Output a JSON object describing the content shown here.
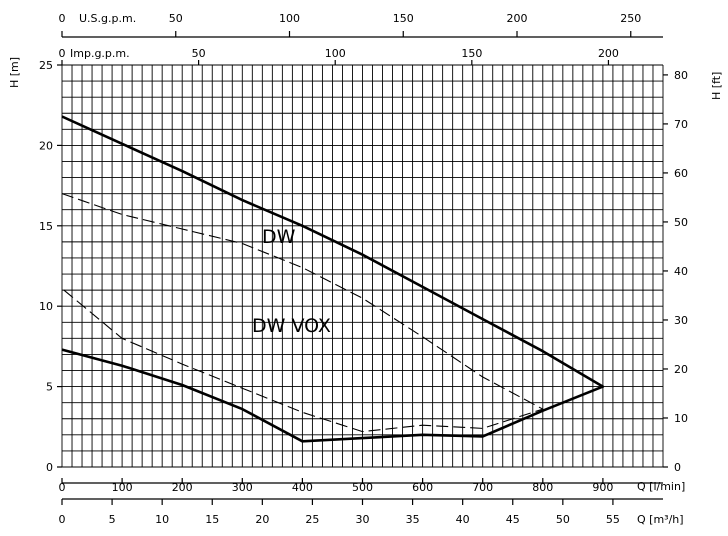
{
  "chart_data": {
    "type": "line",
    "x_axis": {
      "label": "Q [l/min]",
      "range": [
        0,
        1000
      ],
      "ticks": [
        0,
        100,
        200,
        300,
        400,
        500,
        600,
        700,
        800,
        900
      ]
    },
    "x_axis_m3h": {
      "label": "Q [m³/h]",
      "ticks": [
        0,
        5,
        10,
        15,
        20,
        25,
        30,
        35,
        40,
        45,
        50,
        55
      ]
    },
    "x_axis_usgpm": {
      "label": "U.S.g.p.m.",
      "ticks": [
        0,
        50,
        100,
        150,
        200,
        250
      ]
    },
    "x_axis_impgpm": {
      "label": "Imp.g.p.m.",
      "ticks": [
        0,
        50,
        100,
        150,
        200
      ]
    },
    "y_axis": {
      "label": "H [m]",
      "range": [
        0,
        25
      ],
      "ticks": [
        0,
        5,
        10,
        15,
        20,
        25
      ]
    },
    "y_axis_ft": {
      "label": "H [ft]",
      "ticks": [
        0,
        10,
        20,
        30,
        40,
        50,
        60,
        70,
        80
      ]
    },
    "grid": true,
    "series": [
      {
        "name": "DW",
        "style": "solid",
        "x": [
          0,
          100,
          200,
          300,
          400,
          500,
          600,
          700,
          800,
          900,
          800,
          700,
          600,
          500,
          400,
          300,
          200,
          100,
          0
        ],
        "y": [
          21.8,
          20.1,
          18.4,
          16.6,
          15.0,
          13.2,
          11.2,
          9.2,
          7.2,
          5.0,
          3.5,
          1.9,
          2.0,
          1.8,
          1.6,
          3.6,
          5.1,
          6.3,
          7.3
        ]
      },
      {
        "name": "DW VOX",
        "style": "dashed",
        "x": [
          0,
          100,
          200,
          300,
          400,
          500,
          600,
          700,
          800,
          700,
          600,
          500,
          400,
          300,
          200,
          100,
          0
        ],
        "y": [
          17.0,
          15.7,
          14.8,
          13.9,
          12.4,
          10.5,
          8.1,
          5.6,
          3.6,
          2.4,
          2.6,
          2.2,
          3.4,
          4.9,
          6.4,
          8.0,
          11.1
        ]
      }
    ],
    "annotations": [
      "DW",
      "DW VOX"
    ],
    "colors": {
      "lines": "#000000",
      "grid": "#000000",
      "background": "#ffffff"
    }
  }
}
